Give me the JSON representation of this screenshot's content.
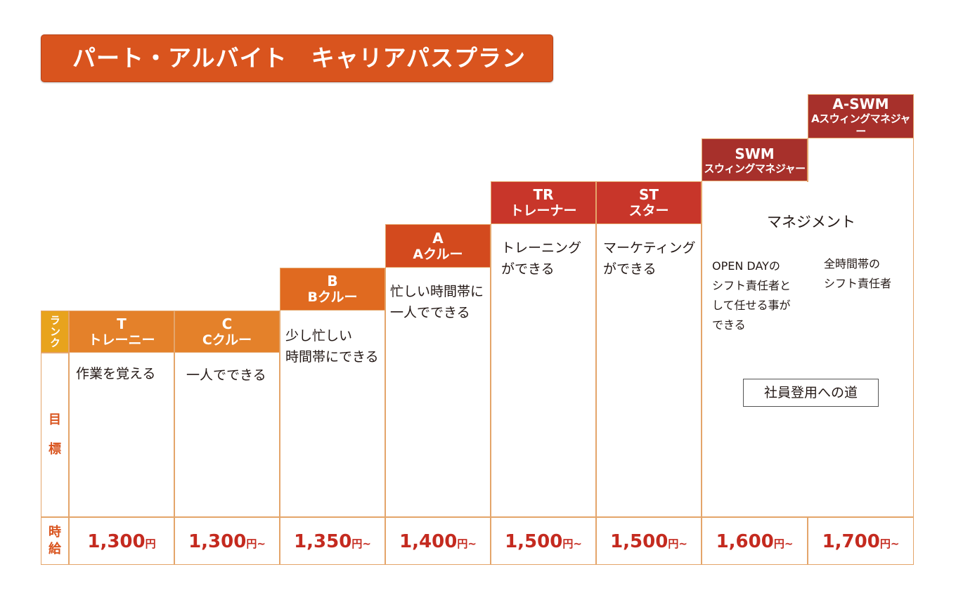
{
  "title": "パート・アルバイト　キャリアパスプラン",
  "labels": {
    "rank": "ランク",
    "goal": "目\n標",
    "wage": "時\n給"
  },
  "colors": {
    "orange": "#e4812a",
    "orange_dark": "#e06a20",
    "red_orange": "#d34a1e",
    "red": "#c8362a",
    "dark_red": "#a7302b",
    "rank_yellow": "#e8a31d",
    "wage_red": "#c42a1f"
  },
  "ranks": [
    {
      "code": "T",
      "name": "トレーニー",
      "goal": "作業を覚える",
      "wage": "1,300",
      "suffix": "円"
    },
    {
      "code": "C",
      "name": "Cクルー",
      "goal": "一人でできる",
      "wage": "1,300",
      "suffix": "円~"
    },
    {
      "code": "B",
      "name": "Bクルー",
      "goal": "少し忙しい\n時間帯にできる",
      "wage": "1,350",
      "suffix": "円~"
    },
    {
      "code": "A",
      "name": "Aクルー",
      "goal": "忙しい時間帯に\n一人でできる",
      "wage": "1,400",
      "suffix": "円~"
    },
    {
      "code": "TR",
      "name": "トレーナー",
      "goal": "トレーニング\nができる",
      "wage": "1,500",
      "suffix": "円~"
    },
    {
      "code": "ST",
      "name": "スター",
      "goal": "マーケティング\nができる",
      "wage": "1,500",
      "suffix": "円~"
    },
    {
      "code": "SWM",
      "name": "スウィングマネジャー",
      "goal": "OPEN DAYの\nシフト責任者と\nして任せる事が\nできる",
      "wage": "1,600",
      "suffix": "円~"
    },
    {
      "code": "A-SWM",
      "name": "Aスウィングマネジャー",
      "goal": "全時間帯の\nシフト責任者",
      "wage": "1,700",
      "suffix": "円~"
    }
  ],
  "management": {
    "title": "マネジメント",
    "promotion": "社員登用への道"
  }
}
